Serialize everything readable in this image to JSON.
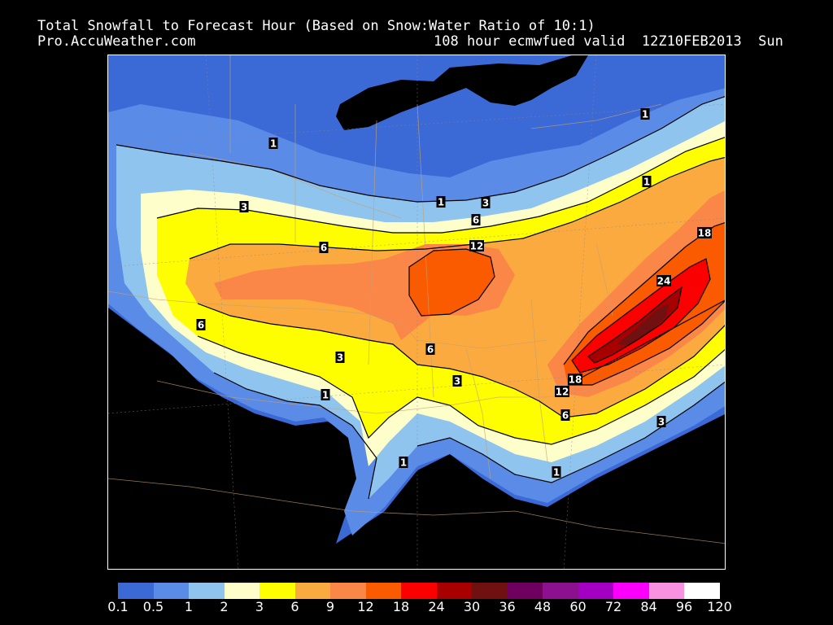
{
  "header": {
    "title": "Total Snowfall to Forecast Hour (Based on Snow:Water Ratio of 10:1)",
    "source": "Pro.AccuWeather.com",
    "run": "108 hour ecmwfued valid  12Z10FEB2013  Sun"
  },
  "legend": {
    "colors": [
      "#3b6ad6",
      "#5a8be6",
      "#8fc4ee",
      "#fefecb",
      "#fefe00",
      "#fbaa40",
      "#fa8648",
      "#fa5a00",
      "#fa0000",
      "#a80000",
      "#701010",
      "#700060",
      "#8c1090",
      "#a400c4",
      "#fa00fa",
      "#fa90e0",
      "#fefefe"
    ],
    "ticks": [
      "0.1",
      "0.5",
      "1",
      "2",
      "3",
      "6",
      "9",
      "12",
      "18",
      "24",
      "30",
      "36",
      "48",
      "60",
      "72",
      "84",
      "96",
      "120"
    ]
  },
  "contour_labels": [
    {
      "text": "1",
      "id": "contour-label-1-north"
    },
    {
      "text": "1",
      "id": "contour-label-1-ne"
    },
    {
      "text": "1",
      "id": "contour-label-1-east"
    },
    {
      "text": "1",
      "id": "contour-label-1-mid"
    },
    {
      "text": "3",
      "id": "contour-label-3-west"
    },
    {
      "text": "3",
      "id": "contour-label-3-center"
    },
    {
      "text": "6",
      "id": "contour-label-6-north"
    },
    {
      "text": "6",
      "id": "contour-label-6-west"
    },
    {
      "text": "12",
      "id": "contour-label-12-center"
    },
    {
      "text": "18",
      "id": "contour-label-18-ne"
    },
    {
      "text": "24",
      "id": "contour-label-24"
    },
    {
      "text": "6",
      "id": "contour-label-6-southwest"
    },
    {
      "text": "3",
      "id": "contour-label-3-southwest"
    },
    {
      "text": "6",
      "id": "contour-label-6-south"
    },
    {
      "text": "3",
      "id": "contour-label-3-south"
    },
    {
      "text": "1",
      "id": "contour-label-1-south"
    },
    {
      "text": "18",
      "id": "contour-label-18-south"
    },
    {
      "text": "12",
      "id": "contour-label-12-south"
    },
    {
      "text": "6",
      "id": "contour-label-6-southeast"
    },
    {
      "text": "3",
      "id": "contour-label-3-southeast"
    },
    {
      "text": "1",
      "id": "contour-label-1-gulf"
    },
    {
      "text": "1",
      "id": "contour-label-1-southeast"
    }
  ]
}
